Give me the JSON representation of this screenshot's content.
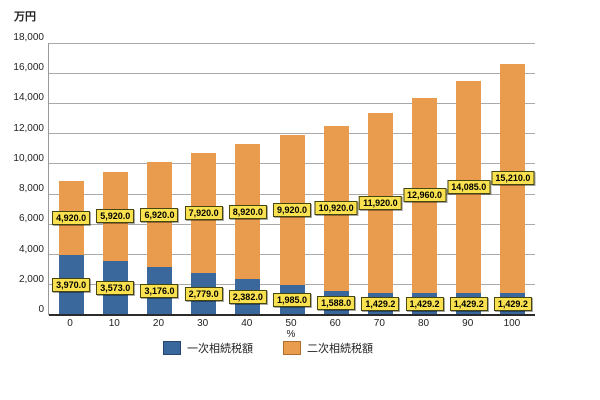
{
  "chart_data": {
    "type": "bar",
    "stacked": true,
    "title": "",
    "categories": [
      "0",
      "10",
      "20",
      "30",
      "40",
      "50",
      "60",
      "70",
      "80",
      "90",
      "100"
    ],
    "xlabel": "%",
    "ylabel": "万円",
    "ylim": [
      0,
      18000
    ],
    "ytick_step": 2000,
    "grid": true,
    "legend_position": "bottom",
    "data_labels": true,
    "series": [
      {
        "name": "一次相続税額",
        "color": "#3a689c",
        "border_color": "#26476b",
        "values": [
          3970.0,
          3573.0,
          3176.0,
          2779.0,
          2382.0,
          1985.0,
          1588.0,
          1429.2,
          1429.2,
          1429.2,
          1429.2
        ]
      },
      {
        "name": "二次相続税額",
        "color": "#e99c4e",
        "border_color": "#b06f2c",
        "values": [
          4920.0,
          5920.0,
          6920.0,
          7920.0,
          8920.0,
          9920.0,
          10920.0,
          11920.0,
          12960.0,
          14085.0,
          15210.0
        ]
      }
    ],
    "colors": {
      "data_label_bg": "#f9e14f",
      "data_label_border": "#454510",
      "gridline": "#aaaaaa",
      "axis_line": "#2b2b2b",
      "text": "#222222"
    }
  }
}
